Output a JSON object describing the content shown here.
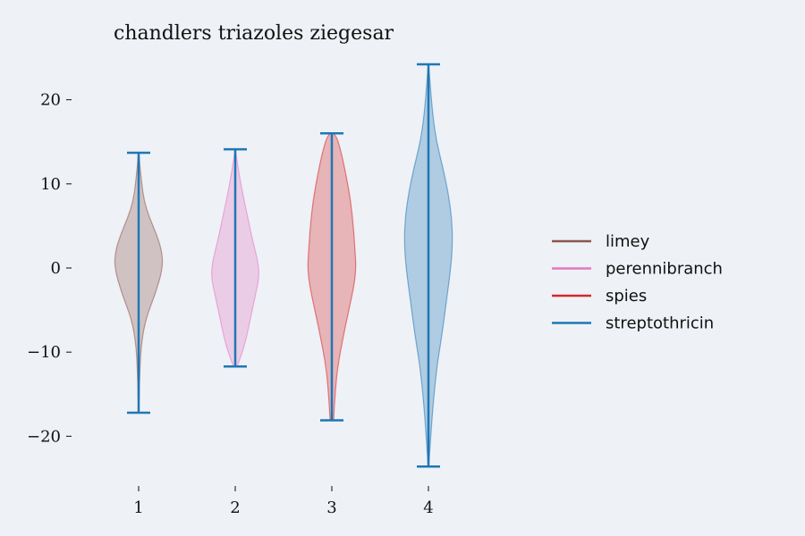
{
  "chart_data": {
    "type": "violin",
    "title": "chandlers triazoles ziegesar",
    "xlabel": "",
    "ylabel": "",
    "x_ticks": [
      "1",
      "2",
      "3",
      "4"
    ],
    "y_ticks": [
      20,
      10,
      0,
      -10,
      -20
    ],
    "y_tick_labels": [
      "20",
      "10",
      "0",
      "−10",
      "−20"
    ],
    "ylim": [
      -26,
      26
    ],
    "grid": false,
    "legend_position": "right",
    "series": [
      {
        "name": "limey",
        "color": "#8c564b",
        "x": 1,
        "min": -17.2,
        "max": 13.7,
        "profile": [
          [
            -17.2,
            0.15
          ],
          [
            -15,
            0.6
          ],
          [
            -12,
            1.4
          ],
          [
            -9,
            3
          ],
          [
            -6,
            8
          ],
          [
            -3,
            19
          ],
          [
            0,
            27
          ],
          [
            2,
            26
          ],
          [
            4,
            20
          ],
          [
            6,
            12
          ],
          [
            8,
            6
          ],
          [
            10,
            3.5
          ],
          [
            12,
            1.5
          ],
          [
            13.7,
            0.3
          ]
        ]
      },
      {
        "name": "perennibranch",
        "color": "#e377c2",
        "x": 2,
        "min": -11.7,
        "max": 14.1,
        "profile": [
          [
            -11.7,
            2
          ],
          [
            -11,
            4.5
          ],
          [
            -9,
            11
          ],
          [
            -6,
            17
          ],
          [
            -3,
            23
          ],
          [
            -1,
            27
          ],
          [
            1,
            25
          ],
          [
            3,
            20
          ],
          [
            6,
            14
          ],
          [
            9,
            8
          ],
          [
            12,
            3
          ],
          [
            14.1,
            0.2
          ]
        ]
      },
      {
        "name": "spies",
        "color": "#d62728",
        "x": 3,
        "min": -18.1,
        "max": 16.0,
        "profile": [
          [
            -18.1,
            2
          ],
          [
            -16,
            3
          ],
          [
            -12,
            6
          ],
          [
            -8,
            13
          ],
          [
            -5,
            19
          ],
          [
            -2,
            25
          ],
          [
            0,
            27
          ],
          [
            2,
            26
          ],
          [
            5,
            24
          ],
          [
            8,
            21
          ],
          [
            11,
            16
          ],
          [
            14,
            10
          ],
          [
            16,
            4
          ]
        ]
      },
      {
        "name": "streptothricin",
        "color": "#1f77b4",
        "x": 4,
        "min": -23.6,
        "max": 24.2,
        "profile": [
          [
            -23.6,
            0.3
          ],
          [
            -21,
            2
          ],
          [
            -17,
            4.5
          ],
          [
            -12,
            9
          ],
          [
            -8,
            15
          ],
          [
            -4,
            20
          ],
          [
            0,
            25
          ],
          [
            3,
            27
          ],
          [
            6,
            26
          ],
          [
            9,
            22
          ],
          [
            12,
            16
          ],
          [
            15,
            9
          ],
          [
            18,
            5
          ],
          [
            21,
            2.5
          ],
          [
            24.2,
            0.3
          ]
        ]
      }
    ],
    "whisker_color": "#1f77b4"
  }
}
